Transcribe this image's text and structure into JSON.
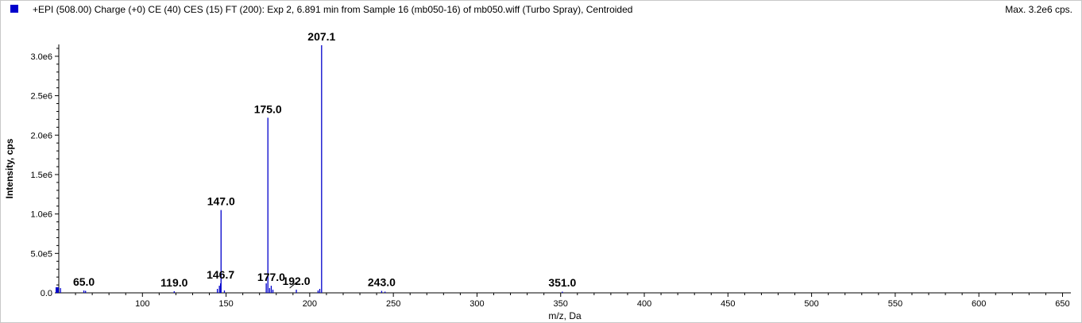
{
  "header": {
    "title": "+EPI (508.00) Charge (+0) CE (40) CES (15) FT (200): Exp 2, 6.891 min from Sample 16 (mb050-16) of mb050.wiff (Turbo Spray), Centroided",
    "max": "Max. 3.2e6 cps."
  },
  "colors": {
    "series": "#0000cc",
    "swatch": "#0000cc"
  },
  "chart_data": {
    "type": "bar",
    "xlabel": "m/z, Da",
    "ylabel": "Intensity, cps",
    "xlim": [
      50,
      655
    ],
    "ylim": [
      0,
      3150000
    ],
    "xticks": [
      100,
      150,
      200,
      250,
      300,
      350,
      400,
      450,
      500,
      550,
      600,
      650
    ],
    "yticks": [
      {
        "value": 0,
        "label": "0.0"
      },
      {
        "value": 500000,
        "label": "5.0e5"
      },
      {
        "value": 1000000,
        "label": "1.0e6"
      },
      {
        "value": 1500000,
        "label": "1.5e6"
      },
      {
        "value": 2000000,
        "label": "2.0e6"
      },
      {
        "value": 2500000,
        "label": "2.5e6"
      },
      {
        "value": 3000000,
        "label": "3.0e6"
      }
    ],
    "peaks": [
      {
        "mz": 51.0,
        "intensity": 60000
      },
      {
        "mz": 65.0,
        "intensity": 30000
      },
      {
        "mz": 66.0,
        "intensity": 25000
      },
      {
        "mz": 119.0,
        "intensity": 20000
      },
      {
        "mz": 144.8,
        "intensity": 50000
      },
      {
        "mz": 146.0,
        "intensity": 90000
      },
      {
        "mz": 146.7,
        "intensity": 120000
      },
      {
        "mz": 147.0,
        "intensity": 1050000
      },
      {
        "mz": 149.0,
        "intensity": 30000
      },
      {
        "mz": 174.0,
        "intensity": 120000
      },
      {
        "mz": 175.0,
        "intensity": 2220000
      },
      {
        "mz": 176.0,
        "intensity": 60000
      },
      {
        "mz": 177.0,
        "intensity": 90000
      },
      {
        "mz": 178.0,
        "intensity": 40000
      },
      {
        "mz": 192.0,
        "intensity": 40000
      },
      {
        "mz": 205.0,
        "intensity": 30000
      },
      {
        "mz": 206.0,
        "intensity": 50000
      },
      {
        "mz": 207.1,
        "intensity": 3140000
      },
      {
        "mz": 243.0,
        "intensity": 25000
      },
      {
        "mz": 245.0,
        "intensity": 15000
      },
      {
        "mz": 351.0,
        "intensity": 15000
      }
    ],
    "annotations": [
      {
        "label": "65.0",
        "mz": 65.0,
        "intensity": 30000
      },
      {
        "label": "119.0",
        "mz": 119.0,
        "intensity": 20000
      },
      {
        "label": "146.7",
        "mz": 146.7,
        "intensity": 120000
      },
      {
        "label": "147.0",
        "mz": 147.0,
        "intensity": 1050000
      },
      {
        "label": "175.0",
        "mz": 175.0,
        "intensity": 2220000
      },
      {
        "label": "177.0",
        "mz": 177.0,
        "intensity": 90000
      },
      {
        "label": "192.0",
        "mz": 192.0,
        "intensity": 40000
      },
      {
        "label": "207.1",
        "mz": 207.1,
        "intensity": 3140000
      },
      {
        "label": "243.0",
        "mz": 243.0,
        "intensity": 25000
      },
      {
        "label": "351.0",
        "mz": 351.0,
        "intensity": 15000
      }
    ]
  }
}
